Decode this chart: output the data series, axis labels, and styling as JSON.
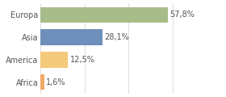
{
  "categories": [
    "Africa",
    "America",
    "Asia",
    "Europa"
  ],
  "values": [
    1.6,
    12.5,
    28.1,
    57.8
  ],
  "labels": [
    "1,6%",
    "12,5%",
    "28,1%",
    "57,8%"
  ],
  "bar_colors": [
    "#f0a868",
    "#f5c97a",
    "#6e8fbb",
    "#a8bc8a"
  ],
  "background_color": "#ffffff",
  "xlim": [
    0,
    72
  ],
  "bar_height": 0.7,
  "label_fontsize": 7.0,
  "tick_fontsize": 7.0
}
